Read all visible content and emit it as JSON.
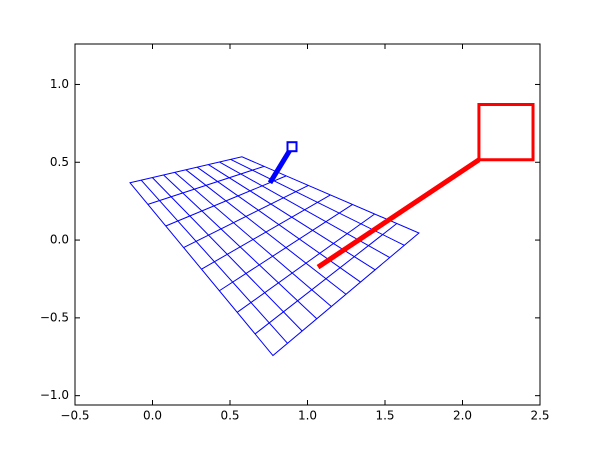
{
  "chart_data": {
    "type": "line",
    "xlim": [
      -0.5,
      2.5
    ],
    "ylim": [
      -1.06,
      1.26
    ],
    "xticks": [
      {
        "value": -0.5,
        "label": "−0.5"
      },
      {
        "value": 0,
        "label": "0.0"
      },
      {
        "value": 0.5,
        "label": "0.5"
      },
      {
        "value": 1,
        "label": "1.0"
      },
      {
        "value": 1.5,
        "label": "1.5"
      },
      {
        "value": 2,
        "label": "2.0"
      },
      {
        "value": 2.5,
        "label": "2.5"
      }
    ],
    "yticks": [
      {
        "value": -1,
        "label": "−1.0"
      },
      {
        "value": -0.5,
        "label": "−0.5"
      },
      {
        "value": 0,
        "label": "0.0"
      },
      {
        "value": 0.5,
        "label": "0.5"
      },
      {
        "value": 1,
        "label": "1.0"
      }
    ],
    "grid": false,
    "series": [
      {
        "color": "#0000ff",
        "linewidth": 1,
        "mesh_divisions": [
          10,
          8
        ],
        "closed": true,
        "x": [
          -0.145,
          0.577,
          1.719,
          0.777
        ],
        "y": [
          0.368,
          0.535,
          0.045,
          -0.742
        ]
      },
      {
        "color": "#0000ff",
        "linewidth": 5,
        "marker": "square",
        "x": [
          0.758,
          0.9
        ],
        "y": [
          0.368,
          0.6
        ]
      },
      {
        "color": "#ff0000",
        "linewidth": 5,
        "x": [
          1.068,
          2.106
        ],
        "y": [
          -0.174,
          0.516
        ]
      },
      {
        "color": "#ff0000",
        "linewidth": 3,
        "closed": true,
        "x": [
          2.106,
          2.455,
          2.455,
          2.106
        ],
        "y": [
          0.516,
          0.516,
          0.871,
          0.871
        ]
      }
    ]
  }
}
